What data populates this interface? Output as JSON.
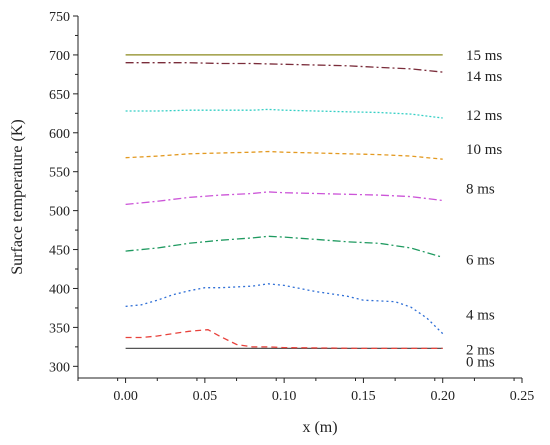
{
  "chart_data": {
    "type": "line",
    "xlabel": "x (m)",
    "ylabel": "Surface temperature (K)",
    "xlim": [
      -0.03,
      0.25
    ],
    "ylim": [
      285,
      750
    ],
    "xticks": [
      0.0,
      0.05,
      0.1,
      0.15,
      0.2,
      0.25
    ],
    "xtick_labels": [
      "0.00",
      "0.05",
      "0.10",
      "0.15",
      "0.20",
      "0.25"
    ],
    "yticks": [
      300,
      350,
      400,
      450,
      500,
      550,
      600,
      650,
      700,
      750
    ],
    "ytick_labels": [
      "300",
      "350",
      "400",
      "450",
      "500",
      "550",
      "600",
      "650",
      "700",
      "750"
    ],
    "grid": false,
    "series": [
      {
        "name": "0 ms",
        "color": "#555555",
        "dash": "",
        "x": [
          0.0,
          0.05,
          0.1,
          0.15,
          0.2
        ],
        "values": [
          323,
          323,
          323,
          323,
          323
        ]
      },
      {
        "name": "2 ms",
        "color": "#e8423c",
        "dash": "6,4",
        "x": [
          0.0,
          0.01,
          0.02,
          0.03,
          0.04,
          0.052,
          0.06,
          0.07,
          0.08,
          0.09,
          0.1,
          0.15,
          0.2
        ],
        "values": [
          337,
          337,
          339,
          342,
          345,
          347,
          338,
          328,
          325,
          325,
          324,
          323,
          323
        ]
      },
      {
        "name": "4 ms",
        "color": "#2f6fd6",
        "dash": "2,3",
        "x": [
          0.0,
          0.01,
          0.02,
          0.03,
          0.04,
          0.05,
          0.06,
          0.07,
          0.08,
          0.09,
          0.1,
          0.11,
          0.12,
          0.13,
          0.14,
          0.15,
          0.16,
          0.17,
          0.18,
          0.19,
          0.2
        ],
        "values": [
          377,
          379,
          385,
          392,
          397,
          401,
          401,
          402,
          403,
          406,
          404,
          400,
          396,
          393,
          390,
          385,
          384,
          383,
          376,
          362,
          342
        ]
      },
      {
        "name": "6 ms",
        "color": "#1f9a60",
        "dash": "8,3,2,3",
        "x": [
          0.0,
          0.02,
          0.04,
          0.06,
          0.08,
          0.09,
          0.1,
          0.12,
          0.14,
          0.16,
          0.18,
          0.2
        ],
        "values": [
          448,
          452,
          458,
          462,
          465,
          467,
          466,
          463,
          460,
          458,
          452,
          440
        ]
      },
      {
        "name": "8 ms",
        "color": "#cc55d8",
        "dash": "8,3,2,3",
        "x": [
          0.0,
          0.02,
          0.04,
          0.06,
          0.08,
          0.09,
          0.1,
          0.12,
          0.14,
          0.16,
          0.18,
          0.2
        ],
        "values": [
          508,
          512,
          517,
          520,
          522,
          524,
          523,
          522,
          521,
          520,
          518,
          513
        ]
      },
      {
        "name": "10 ms",
        "color": "#e39a22",
        "dash": "4,3",
        "x": [
          0.0,
          0.02,
          0.04,
          0.06,
          0.08,
          0.09,
          0.1,
          0.12,
          0.14,
          0.16,
          0.18,
          0.2
        ],
        "values": [
          568,
          570,
          573,
          574,
          575,
          576,
          575,
          574,
          573,
          572,
          570,
          566
        ]
      },
      {
        "name": "12 ms",
        "color": "#35cfc5",
        "dash": "2,2",
        "x": [
          0.0,
          0.02,
          0.04,
          0.06,
          0.08,
          0.09,
          0.1,
          0.12,
          0.14,
          0.16,
          0.18,
          0.2
        ],
        "values": [
          628,
          628,
          629,
          629,
          629,
          630,
          629,
          628,
          627,
          626,
          624,
          619
        ]
      },
      {
        "name": "14 ms",
        "color": "#7a2c3a",
        "dash": "8,3,2,3",
        "x": [
          0.0,
          0.02,
          0.04,
          0.06,
          0.08,
          0.1,
          0.12,
          0.14,
          0.16,
          0.18,
          0.2
        ],
        "values": [
          690,
          690,
          690,
          689,
          689,
          688,
          687,
          686,
          684,
          682,
          678
        ]
      },
      {
        "name": "15 ms",
        "color": "#8c8a1e",
        "dash": "",
        "x": [
          0.0,
          0.05,
          0.1,
          0.15,
          0.2
        ],
        "values": [
          700,
          700,
          700,
          700,
          700
        ]
      }
    ]
  }
}
